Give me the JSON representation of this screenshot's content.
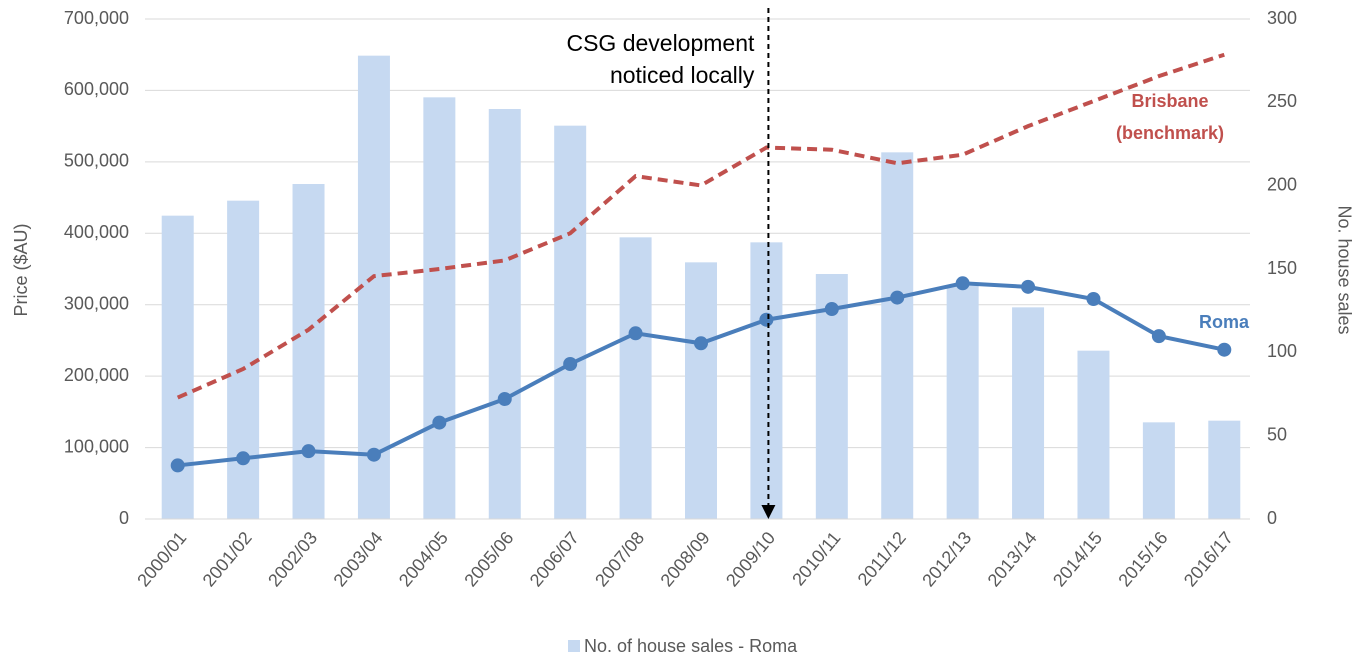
{
  "chart_data": {
    "type": "bar_line",
    "categories": [
      "2000/01",
      "2001/02",
      "2002/03",
      "2003/04",
      "2004/05",
      "2005/06",
      "2006/07",
      "2007/08",
      "2008/09",
      "2009/10",
      "2010/11",
      "2011/12",
      "2012/13",
      "2013/14",
      "2014/15",
      "2015/16",
      "2016/17"
    ],
    "series": [
      {
        "name": "No. of house sales - Roma",
        "type": "bar",
        "axis": "y2",
        "color": "#c6d9f1",
        "values": [
          182,
          191,
          201,
          278,
          253,
          246,
          236,
          169,
          154,
          166,
          147,
          220,
          140,
          127,
          101,
          58,
          59
        ]
      },
      {
        "name": "Roma",
        "type": "line",
        "color": "#4a7ebb",
        "markers": true,
        "values": [
          75000,
          85000,
          95000,
          90000,
          135000,
          168000,
          217000,
          260000,
          246000,
          279000,
          294000,
          310000,
          330000,
          325000,
          308000,
          256000,
          237000
        ]
      },
      {
        "name": "Brisbane (benchmark)",
        "type": "line",
        "color": "#c0504d",
        "dashed": true,
        "values": [
          170000,
          210000,
          265000,
          340000,
          350000,
          362000,
          400000,
          480000,
          467000,
          520000,
          517000,
          498000,
          510000,
          550000,
          585000,
          620000,
          650000
        ]
      }
    ],
    "y_label": "Price ($AU)",
    "y2_label": "No. house sales",
    "annotation": [
      "CSG development",
      "noticed locally"
    ],
    "ylim": [
      0,
      700000
    ],
    "yticks": [
      0,
      {
        "value": 100000,
        "label": "100,000"
      },
      {
        "value": 200000,
        "label": "200,000"
      },
      {
        "value": 300000,
        "label": "300,000"
      },
      {
        "value": 400000,
        "label": "400,000"
      },
      {
        "value": 500000,
        "label": "500,000"
      },
      {
        "value": 600000,
        "label": "600,000"
      },
      {
        "value": 700000,
        "label": "700,000"
      }
    ],
    "y2lim": [
      0,
      300
    ],
    "y2ticks": [
      0,
      50,
      100,
      150,
      200,
      250,
      300
    ],
    "grid": true,
    "legend": "bottom"
  }
}
